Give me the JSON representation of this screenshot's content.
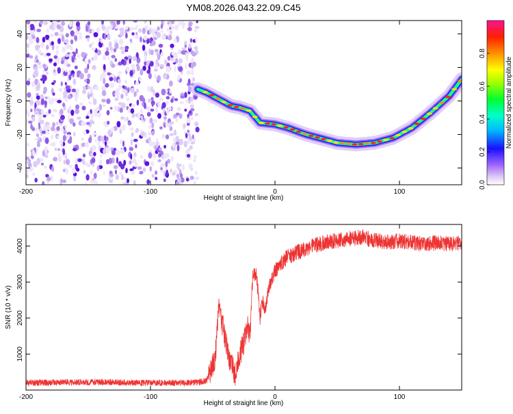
{
  "title": "YM08.2026.043.22.09.C45",
  "chart_data": [
    {
      "type": "heatmap",
      "xlabel": "Height of straight line (km)",
      "ylabel": "Frequency (Hz)",
      "xlim": [
        -200,
        150
      ],
      "ylim": [
        -50,
        48
      ],
      "xticks": [
        -200,
        -100,
        0,
        100
      ],
      "yticks": [
        -40,
        -20,
        0,
        20,
        40
      ],
      "colorbar": {
        "label": "Normalized spectral amplitude",
        "range": [
          0,
          1
        ],
        "ticks": [
          0.0,
          0.2,
          0.4,
          0.6,
          0.8
        ]
      },
      "noise_region_x": [
        -200,
        -62
      ],
      "ridge_x": [
        -62,
        -55,
        -45,
        -35,
        -28,
        -20,
        -12,
        0,
        10,
        25,
        40,
        50,
        65,
        80,
        95,
        110,
        125,
        140,
        150
      ],
      "ridge_y": [
        7,
        5,
        1,
        -3,
        -4,
        -6,
        -13,
        -14,
        -16,
        -20,
        -23,
        -25,
        -26,
        -25,
        -22,
        -16,
        -7,
        3,
        13
      ]
    },
    {
      "type": "line",
      "xlabel": "Height of straight line (km)",
      "ylabel": "SNR (10 * v/v)",
      "xlim": [
        -200,
        150
      ],
      "ylim": [
        0,
        4600
      ],
      "xticks": [
        -200,
        -100,
        0,
        100
      ],
      "yticks": [
        1000,
        2000,
        3000,
        4000
      ],
      "line_color": "#ee3333",
      "x": [
        -200,
        -150,
        -100,
        -65,
        -55,
        -48,
        -45,
        -42,
        -38,
        -35,
        -32,
        -28,
        -25,
        -22,
        -20,
        -18,
        -15,
        -12,
        -10,
        -8,
        -5,
        -2,
        0,
        5,
        10,
        20,
        30,
        40,
        50,
        60,
        70,
        80,
        90,
        100,
        110,
        120,
        130,
        140,
        150
      ],
      "y": [
        200,
        220,
        200,
        200,
        250,
        900,
        2400,
        1800,
        1100,
        700,
        450,
        1000,
        1300,
        1800,
        1500,
        3100,
        3300,
        2000,
        2500,
        2200,
        2800,
        3100,
        3300,
        3500,
        3700,
        3850,
        4000,
        4100,
        4150,
        4200,
        4250,
        4150,
        4100,
        4150,
        4100,
        4050,
        4100,
        4050,
        4100
      ]
    }
  ]
}
